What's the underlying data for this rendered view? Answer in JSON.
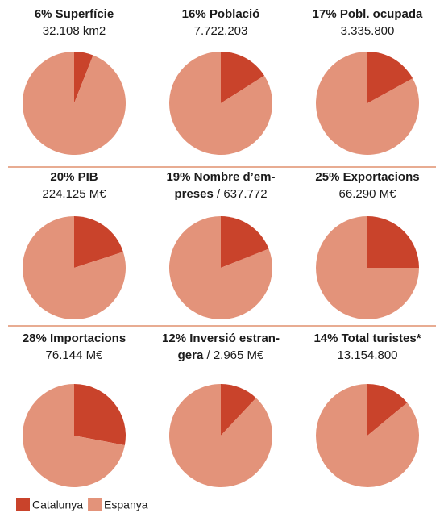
{
  "chart_data": [
    {
      "type": "pie",
      "title": [
        "6% Superfície"
      ],
      "subtitle": "32.108 km2",
      "categories": [
        "Catalunya",
        "Espanya"
      ],
      "values": [
        6,
        94
      ],
      "colors": [
        "#c9432b",
        "#e3937a"
      ]
    },
    {
      "type": "pie",
      "title": [
        "16% Població"
      ],
      "subtitle": "7.722.203",
      "categories": [
        "Catalunya",
        "Espanya"
      ],
      "values": [
        16,
        84
      ],
      "colors": [
        "#c9432b",
        "#e3937a"
      ]
    },
    {
      "type": "pie",
      "title": [
        "17% Pobl. ocupada"
      ],
      "subtitle": "3.335.800",
      "categories": [
        "Catalunya",
        "Espanya"
      ],
      "values": [
        17,
        83
      ],
      "colors": [
        "#c9432b",
        "#e3937a"
      ]
    },
    {
      "type": "pie",
      "title": [
        "20% PIB"
      ],
      "subtitle": "224.125 M€",
      "categories": [
        "Catalunya",
        "Espanya"
      ],
      "values": [
        20,
        80
      ],
      "colors": [
        "#c9432b",
        "#e3937a"
      ]
    },
    {
      "type": "pie",
      "title": [
        "19% Nombre d’em-",
        "preses"
      ],
      "subtitle": "/ 637.772",
      "categories": [
        "Catalunya",
        "Espanya"
      ],
      "values": [
        19,
        81
      ],
      "colors": [
        "#c9432b",
        "#e3937a"
      ]
    },
    {
      "type": "pie",
      "title": [
        "25% Exportacions"
      ],
      "subtitle": "66.290 M€",
      "categories": [
        "Catalunya",
        "Espanya"
      ],
      "values": [
        25,
        75
      ],
      "colors": [
        "#c9432b",
        "#e3937a"
      ]
    },
    {
      "type": "pie",
      "title": [
        "28% Importacions"
      ],
      "subtitle": "76.144 M€",
      "categories": [
        "Catalunya",
        "Espanya"
      ],
      "values": [
        28,
        72
      ],
      "colors": [
        "#c9432b",
        "#e3937a"
      ]
    },
    {
      "type": "pie",
      "title": [
        "12% Inversió estran-",
        "gera"
      ],
      "subtitle": "/ 2.965 M€",
      "categories": [
        "Catalunya",
        "Espanya"
      ],
      "values": [
        12,
        88
      ],
      "colors": [
        "#c9432b",
        "#e3937a"
      ]
    },
    {
      "type": "pie",
      "title": [
        "14% Total turistes*"
      ],
      "subtitle": "13.154.800",
      "categories": [
        "Catalunya",
        "Espanya"
      ],
      "values": [
        14,
        86
      ],
      "colors": [
        "#c9432b",
        "#e3937a"
      ]
    }
  ]
}
